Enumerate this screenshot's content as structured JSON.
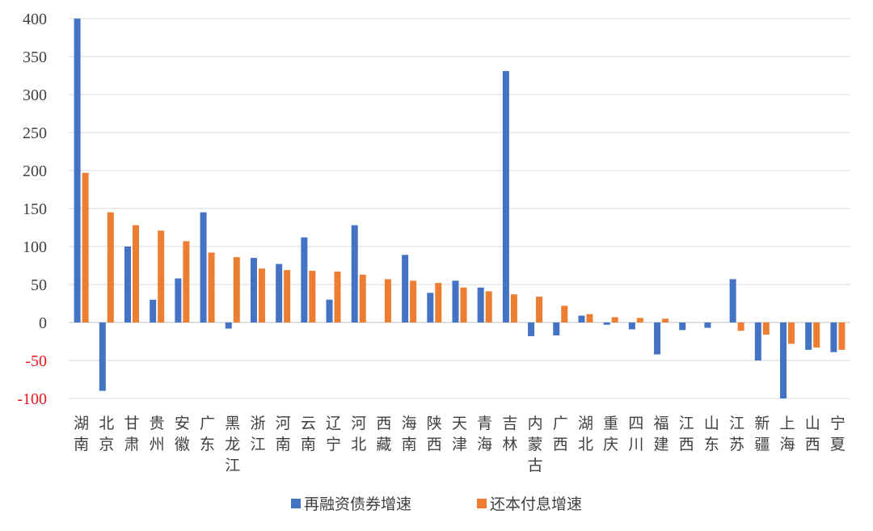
{
  "chart_data": {
    "type": "bar",
    "title": "",
    "xlabel": "",
    "ylabel": "",
    "ylim": [
      -100,
      400
    ],
    "yticks": [
      -100,
      -50,
      0,
      50,
      100,
      150,
      200,
      250,
      300,
      350,
      400
    ],
    "grid": true,
    "legend_position": "bottom-center",
    "categories": [
      "湖南",
      "北京",
      "甘肃",
      "贵州",
      "安徽",
      "广东",
      "黑龙江",
      "浙江",
      "河南",
      "云南",
      "辽宁",
      "河北",
      "西藏",
      "海南",
      "陕西",
      "天津",
      "青海",
      "吉林",
      "内蒙古",
      "广西",
      "湖北",
      "重庆",
      "四川",
      "福建",
      "江西",
      "山东",
      "江苏",
      "新疆",
      "上海",
      "山西",
      "宁夏"
    ],
    "series": [
      {
        "name": "再融资债券增速",
        "color": "#4472c4",
        "values": [
          400,
          -90,
          100,
          30,
          58,
          145,
          -8,
          85,
          77,
          112,
          30,
          128,
          0,
          89,
          39,
          55,
          46,
          331,
          -18,
          -17,
          9,
          -3,
          -9,
          -42,
          -10,
          -7,
          57,
          -50,
          -100,
          -36,
          -39
        ]
      },
      {
        "name": "还本付息增速",
        "color": "#ed7d31",
        "values": [
          197,
          145,
          128,
          121,
          107,
          92,
          86,
          71,
          69,
          68,
          67,
          63,
          57,
          55,
          52,
          46,
          41,
          37,
          34,
          22,
          11,
          7,
          6,
          5,
          0,
          0,
          -11,
          -16,
          -28,
          -33,
          -36
        ]
      }
    ]
  }
}
